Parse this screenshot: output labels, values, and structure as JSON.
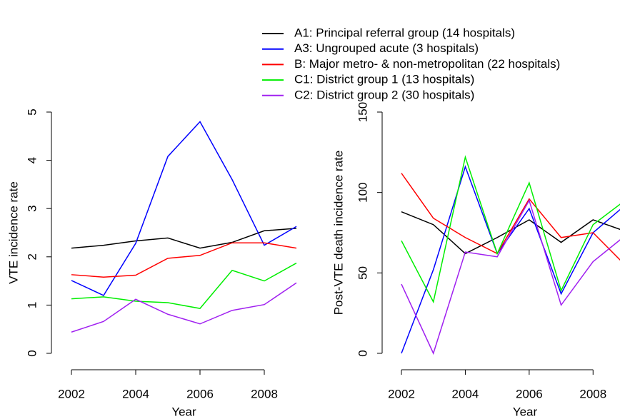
{
  "chart_data": [
    {
      "type": "line",
      "xlabel": "Year",
      "ylabel": "VTE incidence rate",
      "x": [
        2002,
        2003,
        2004,
        2005,
        2006,
        2007,
        2008,
        2009
      ],
      "xlim": [
        2002,
        2009
      ],
      "ylim": [
        0,
        5
      ],
      "xticks": [
        2002,
        2004,
        2006,
        2008
      ],
      "yticks": [
        0,
        1,
        2,
        3,
        4,
        5
      ],
      "series": [
        {
          "name": "A1: Principal referral group (14 hospitals)",
          "color": "#000000",
          "values": [
            2.18,
            2.24,
            2.33,
            2.39,
            2.18,
            2.3,
            2.54,
            2.59
          ]
        },
        {
          "name": "A3: Ungrouped acute (3 hospitals)",
          "color": "#0000ff",
          "values": [
            1.51,
            1.2,
            2.28,
            4.08,
            4.8,
            3.6,
            2.24,
            2.63
          ]
        },
        {
          "name": "B: Major metro- & non-metropolitan (22 hospitals)",
          "color": "#ff0000",
          "values": [
            1.63,
            1.58,
            1.62,
            1.97,
            2.03,
            2.29,
            2.29,
            2.18
          ]
        },
        {
          "name": "C1: District group 1 (13 hospitals)",
          "color": "#00ee00",
          "values": [
            1.13,
            1.17,
            1.08,
            1.05,
            0.93,
            1.72,
            1.5,
            1.87
          ]
        },
        {
          "name": "C2: District group 2 (30 hospitals)",
          "color": "#a020f0",
          "values": [
            0.44,
            0.66,
            1.12,
            0.81,
            0.61,
            0.89,
            1.01,
            1.46
          ]
        }
      ]
    },
    {
      "type": "line",
      "xlabel": "Year",
      "ylabel": "Post-VTE death incidence rate",
      "x": [
        2002,
        2003,
        2004,
        2005,
        2006,
        2007,
        2008,
        2009
      ],
      "xlim": [
        2002,
        2009
      ],
      "ylim": [
        0,
        150
      ],
      "xticks": [
        2002,
        2004,
        2006,
        2008
      ],
      "yticks": [
        0,
        50,
        100,
        150
      ],
      "series": [
        {
          "color": "#000000",
          "values": [
            88,
            80,
            62,
            72,
            83,
            69,
            83,
            76
          ]
        },
        {
          "color": "#0000ff",
          "values": [
            0,
            52,
            116,
            62,
            90,
            37,
            75,
            92
          ]
        },
        {
          "color": "#ff0000",
          "values": [
            112,
            84,
            72,
            62,
            96,
            72,
            75,
            55
          ]
        },
        {
          "color": "#00ee00",
          "values": [
            70,
            32,
            122,
            62,
            106,
            39,
            80,
            95
          ]
        },
        {
          "color": "#a020f0",
          "values": [
            43,
            0,
            63,
            60,
            95,
            30,
            57,
            73
          ]
        }
      ]
    }
  ]
}
